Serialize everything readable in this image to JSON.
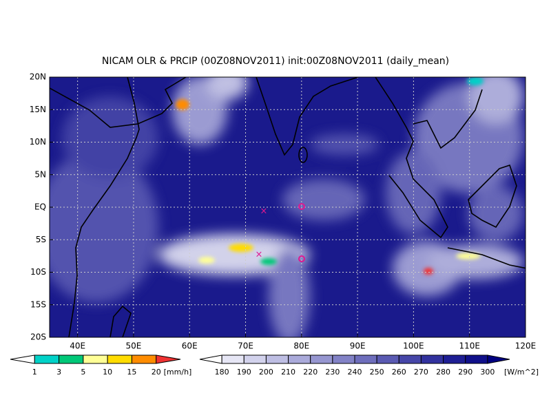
{
  "title": "NICAM OLR & PRCIP (00Z08NOV2011) init:00Z08NOV2011 (daily_mean)",
  "lat_labels": [
    "20N",
    "15N",
    "10N",
    "5N",
    "EQ",
    "5S",
    "10S",
    "15S",
    "20S"
  ],
  "lon_labels": [
    "40E",
    "50E",
    "60E",
    "70E",
    "80E",
    "90E",
    "100E",
    "110E",
    "120E"
  ],
  "precip_legend": {
    "levels": [
      "1",
      "3",
      "5",
      "10",
      "15",
      "20"
    ],
    "unit": "[mm/h]",
    "colors": [
      "#ffffff",
      "#00d2c8",
      "#00c878",
      "#ffff96",
      "#ffdc00",
      "#ff8c00",
      "#f03232"
    ]
  },
  "olr_legend": {
    "levels": [
      "180",
      "190",
      "200",
      "210",
      "220",
      "230",
      "240",
      "250",
      "260",
      "270",
      "280",
      "290",
      "300"
    ],
    "unit": "[W/m^2]",
    "colors": [
      "#ffffff",
      "#e6e6f5",
      "#d2d2ec",
      "#bebee3",
      "#aaaada",
      "#9696d0",
      "#8282c6",
      "#6e6ebc",
      "#5a5ab2",
      "#4646a8",
      "#32329e",
      "#1e1e94",
      "#10108a",
      "#000080"
    ]
  }
}
